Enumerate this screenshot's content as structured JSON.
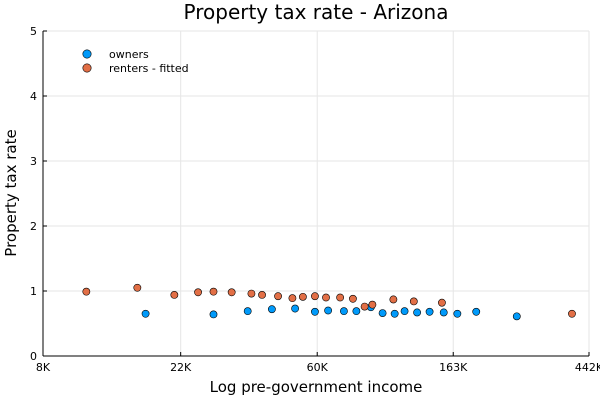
{
  "chart_data": {
    "type": "scatter",
    "title": "Property tax rate - Arizona",
    "xlabel": "Log pre-government income",
    "ylabel": "Property tax rate",
    "x_scale": "log",
    "xlim": [
      8000,
      442000
    ],
    "ylim": [
      0,
      5
    ],
    "x_ticks": [
      {
        "value": 8000,
        "label": "8K"
      },
      {
        "value": 22000,
        "label": "22K"
      },
      {
        "value": 60000,
        "label": "60K"
      },
      {
        "value": 163000,
        "label": "163K"
      },
      {
        "value": 442000,
        "label": "442K"
      }
    ],
    "y_ticks": [
      {
        "value": 0,
        "label": "0"
      },
      {
        "value": 1,
        "label": "1"
      },
      {
        "value": 2,
        "label": "2"
      },
      {
        "value": 3,
        "label": "3"
      },
      {
        "value": 4,
        "label": "4"
      },
      {
        "value": 5,
        "label": "5"
      }
    ],
    "grid": true,
    "legend_position": "top-left",
    "series": [
      {
        "name": "owners",
        "color": "#009AFA",
        "points": [
          {
            "x": 17000,
            "y": 0.65
          },
          {
            "x": 28000,
            "y": 0.64
          },
          {
            "x": 36000,
            "y": 0.69
          },
          {
            "x": 43000,
            "y": 0.72
          },
          {
            "x": 51000,
            "y": 0.73
          },
          {
            "x": 59000,
            "y": 0.68
          },
          {
            "x": 65000,
            "y": 0.7
          },
          {
            "x": 73000,
            "y": 0.69
          },
          {
            "x": 80000,
            "y": 0.69
          },
          {
            "x": 89000,
            "y": 0.75
          },
          {
            "x": 97000,
            "y": 0.66
          },
          {
            "x": 106000,
            "y": 0.65
          },
          {
            "x": 114000,
            "y": 0.69
          },
          {
            "x": 125000,
            "y": 0.67
          },
          {
            "x": 137000,
            "y": 0.68
          },
          {
            "x": 152000,
            "y": 0.67
          },
          {
            "x": 168000,
            "y": 0.65
          },
          {
            "x": 193000,
            "y": 0.68
          },
          {
            "x": 260000,
            "y": 0.61
          }
        ]
      },
      {
        "name": "renters - fitted",
        "color": "#E26F46",
        "points": [
          {
            "x": 11000,
            "y": 0.99
          },
          {
            "x": 16000,
            "y": 1.05
          },
          {
            "x": 21000,
            "y": 0.94
          },
          {
            "x": 25000,
            "y": 0.98
          },
          {
            "x": 28000,
            "y": 0.99
          },
          {
            "x": 32000,
            "y": 0.98
          },
          {
            "x": 37000,
            "y": 0.96
          },
          {
            "x": 40000,
            "y": 0.94
          },
          {
            "x": 45000,
            "y": 0.92
          },
          {
            "x": 50000,
            "y": 0.89
          },
          {
            "x": 54000,
            "y": 0.91
          },
          {
            "x": 59000,
            "y": 0.92
          },
          {
            "x": 64000,
            "y": 0.9
          },
          {
            "x": 71000,
            "y": 0.9
          },
          {
            "x": 78000,
            "y": 0.88
          },
          {
            "x": 85000,
            "y": 0.76
          },
          {
            "x": 90000,
            "y": 0.79
          },
          {
            "x": 105000,
            "y": 0.87
          },
          {
            "x": 122000,
            "y": 0.84
          },
          {
            "x": 150000,
            "y": 0.82
          },
          {
            "x": 390000,
            "y": 0.65
          }
        ]
      }
    ]
  }
}
